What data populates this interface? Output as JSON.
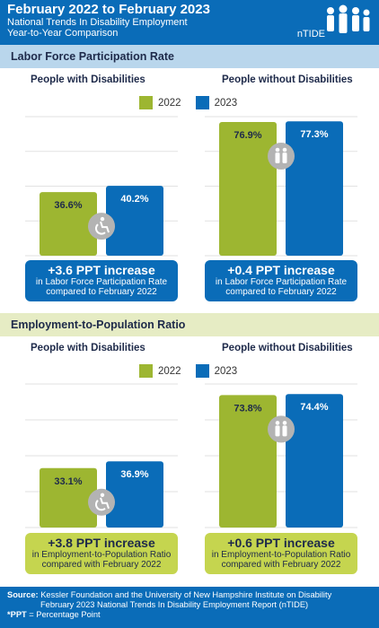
{
  "header": {
    "title": "February 2022 to February  2023",
    "line2": "National Trends In Disability Employment",
    "line3": "Year-to-Year Comparison",
    "logo_text": "nTIDE"
  },
  "colors": {
    "year2022": "#9db631",
    "year2023": "#0a6cb8",
    "header": "#0a6cb8"
  },
  "legend": {
    "label2022": "2022",
    "label2023": "2023"
  },
  "sections": [
    {
      "title": "Labor Force Participation Rate",
      "left_title": "People with Disabilities",
      "right_title": "People without Disabilities",
      "callout_left": {
        "headline": "+3.6 PPT increase",
        "line1": "in Labor Force Participation Rate",
        "line2": "compared to February 2022"
      },
      "callout_right": {
        "headline": "+0.4 PPT increase",
        "line1": "in Labor Force Participation Rate",
        "line2": "compared to February 2022"
      }
    },
    {
      "title": "Employment-to-Population Ratio",
      "left_title": "People with Disabilities",
      "right_title": "People without Disabilities",
      "callout_left": {
        "headline": "+3.8 PPT increase",
        "line1": "in Employment-to-Population Ratio",
        "line2": "compared with February 2022"
      },
      "callout_right": {
        "headline": "+0.6 PPT increase",
        "line1": "in Employment-to-Population Ratio",
        "line2": "compared with February 2022"
      }
    }
  ],
  "chart_data": [
    {
      "type": "bar",
      "categories": [
        "2022",
        "2023"
      ],
      "values": [
        36.6,
        40.2
      ],
      "labels": [
        "36.6%",
        "40.2%"
      ],
      "title": "",
      "ylim": [
        0,
        80
      ]
    },
    {
      "type": "bar",
      "categories": [
        "2022",
        "2023"
      ],
      "values": [
        76.9,
        77.3
      ],
      "labels": [
        "76.9%",
        "77.3%"
      ],
      "title": "",
      "ylim": [
        0,
        80
      ]
    },
    {
      "type": "bar",
      "categories": [
        "2022",
        "2023"
      ],
      "values": [
        33.1,
        36.9
      ],
      "labels": [
        "33.1%",
        "36.9%"
      ],
      "title": "",
      "ylim": [
        0,
        80
      ]
    },
    {
      "type": "bar",
      "categories": [
        "2022",
        "2023"
      ],
      "values": [
        73.8,
        74.4
      ],
      "labels": [
        "73.8%",
        "74.4%"
      ],
      "title": "",
      "ylim": [
        0,
        80
      ]
    }
  ],
  "footer": {
    "source_label": "Source:",
    "source_line1": "Kessler Foundation and the University of New Hampshire Institute on Disability",
    "source_line2": "February 2023 National Trends In Disability Employment Report (nTIDE)",
    "note_label": "*PPT",
    "note_text": " = Percentage Point"
  }
}
